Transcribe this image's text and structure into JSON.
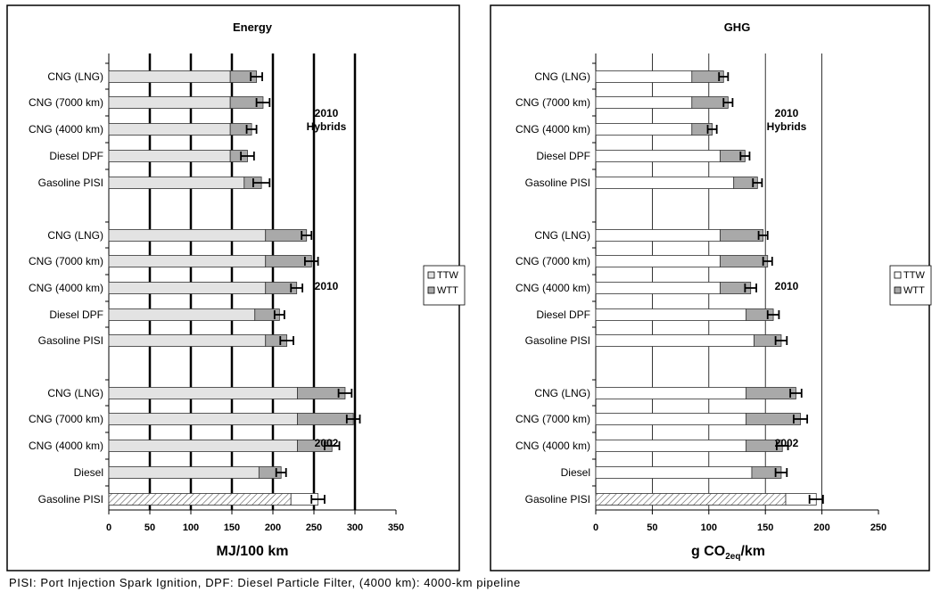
{
  "footnote": "PISI: Port Injection Spark Ignition, DPF: Diesel Particle Filter, (4000 km): 4000-km pipeline",
  "colors": {
    "ttw_energy": "#e3e3e3",
    "ttw_ghg": "#ffffff",
    "wtt": "#a9a9a9",
    "frame": "#000000"
  },
  "chart_data": [
    {
      "type": "bar",
      "orientation": "horizontal",
      "stacked": true,
      "title": "Energy",
      "xlabel": "MJ/100 km",
      "xlim": [
        0,
        350
      ],
      "xticks": [
        "0",
        "50",
        "100",
        "150",
        "200",
        "250",
        "300",
        "350"
      ],
      "legend": {
        "entries": [
          "TTW",
          "WTT"
        ],
        "placement": "right"
      },
      "reference_lines": [
        50,
        100,
        150,
        200,
        250,
        300
      ],
      "groups": [
        {
          "label": "2010 Hybrids",
          "label_lines": [
            "2010",
            "Hybrids"
          ],
          "categories": [
            "CNG (LNG)",
            "CNG (7000 km)",
            "CNG (4000 km)",
            "Diesel DPF",
            "Gasoline PISI"
          ],
          "series": [
            {
              "name": "TTW",
              "values": [
                148,
                148,
                148,
                148,
                165
              ]
            },
            {
              "name": "WTT",
              "values": [
                32,
                40,
                26,
                21,
                21
              ]
            }
          ],
          "error": [
            7,
            8,
            6,
            8,
            10
          ],
          "hatched": [
            false,
            false,
            false,
            false,
            false
          ]
        },
        {
          "label": "2010",
          "label_lines": [
            "2010"
          ],
          "categories": [
            "CNG (LNG)",
            "CNG (7000 km)",
            "CNG (4000 km)",
            "Diesel DPF",
            "Gasoline PISI"
          ],
          "series": [
            {
              "name": "TTW",
              "values": [
                191,
                191,
                191,
                178,
                191
              ]
            },
            {
              "name": "WTT",
              "values": [
                50,
                56,
                38,
                30,
                26
              ]
            }
          ],
          "error": [
            6,
            8,
            7,
            6,
            8
          ],
          "hatched": [
            false,
            false,
            false,
            false,
            false
          ]
        },
        {
          "label": "2002",
          "label_lines": [
            "2002"
          ],
          "categories": [
            "CNG (LNG)",
            "CNG (7000 km)",
            "CNG (4000 km)",
            "Diesel",
            "Gasoline PISI"
          ],
          "series": [
            {
              "name": "TTW",
              "values": [
                230,
                230,
                230,
                183,
                222
              ]
            },
            {
              "name": "WTT",
              "values": [
                58,
                68,
                42,
                27,
                33
              ]
            }
          ],
          "error": [
            8,
            8,
            9,
            6,
            8
          ],
          "hatched": [
            false,
            false,
            false,
            false,
            true
          ]
        }
      ]
    },
    {
      "type": "bar",
      "orientation": "horizontal",
      "stacked": true,
      "title": "GHG",
      "xlabel": "g CO2eq/km",
      "xlabel_main": "g CO",
      "xlabel_sub": "2eq",
      "xlabel_tail": "/km",
      "xlim": [
        0,
        250
      ],
      "xticks": [
        "0",
        "50",
        "100",
        "150",
        "200",
        "250"
      ],
      "legend": {
        "entries": [
          "TTW",
          "WTT"
        ],
        "placement": "right"
      },
      "reference_lines": [
        50,
        100,
        150,
        200
      ],
      "groups": [
        {
          "label": "2010 Hybrids",
          "label_lines": [
            "2010",
            "Hybrids"
          ],
          "categories": [
            "CNG (LNG)",
            "CNG (7000 km)",
            "CNG (4000 km)",
            "Diesel DPF",
            "Gasoline PISI"
          ],
          "series": [
            {
              "name": "TTW",
              "values": [
                85,
                85,
                85,
                110,
                122
              ]
            },
            {
              "name": "WTT",
              "values": [
                28,
                32,
                18,
                22,
                21
              ]
            }
          ],
          "error": [
            4,
            4,
            4,
            4,
            4
          ],
          "hatched": [
            false,
            false,
            false,
            false,
            false
          ]
        },
        {
          "label": "2010",
          "label_lines": [
            "2010"
          ],
          "categories": [
            "CNG (LNG)",
            "CNG (7000 km)",
            "CNG (4000 km)",
            "Diesel DPF",
            "Gasoline PISI"
          ],
          "series": [
            {
              "name": "TTW",
              "values": [
                110,
                110,
                110,
                133,
                140
              ]
            },
            {
              "name": "WTT",
              "values": [
                38,
                42,
                27,
                24,
                24
              ]
            }
          ],
          "error": [
            4,
            4,
            5,
            5,
            5
          ],
          "hatched": [
            false,
            false,
            false,
            false,
            false
          ]
        },
        {
          "label": "2002",
          "label_lines": [
            "2002"
          ],
          "categories": [
            "CNG (LNG)",
            "CNG (7000 km)",
            "CNG (4000 km)",
            "Diesel",
            "Gasoline PISI"
          ],
          "series": [
            {
              "name": "TTW",
              "values": [
                133,
                133,
                133,
                138,
                168
              ]
            },
            {
              "name": "WTT",
              "values": [
                44,
                48,
                32,
                26,
                27
              ]
            }
          ],
          "error": [
            5,
            6,
            5,
            5,
            6
          ],
          "hatched": [
            false,
            false,
            false,
            false,
            true
          ]
        }
      ]
    }
  ]
}
